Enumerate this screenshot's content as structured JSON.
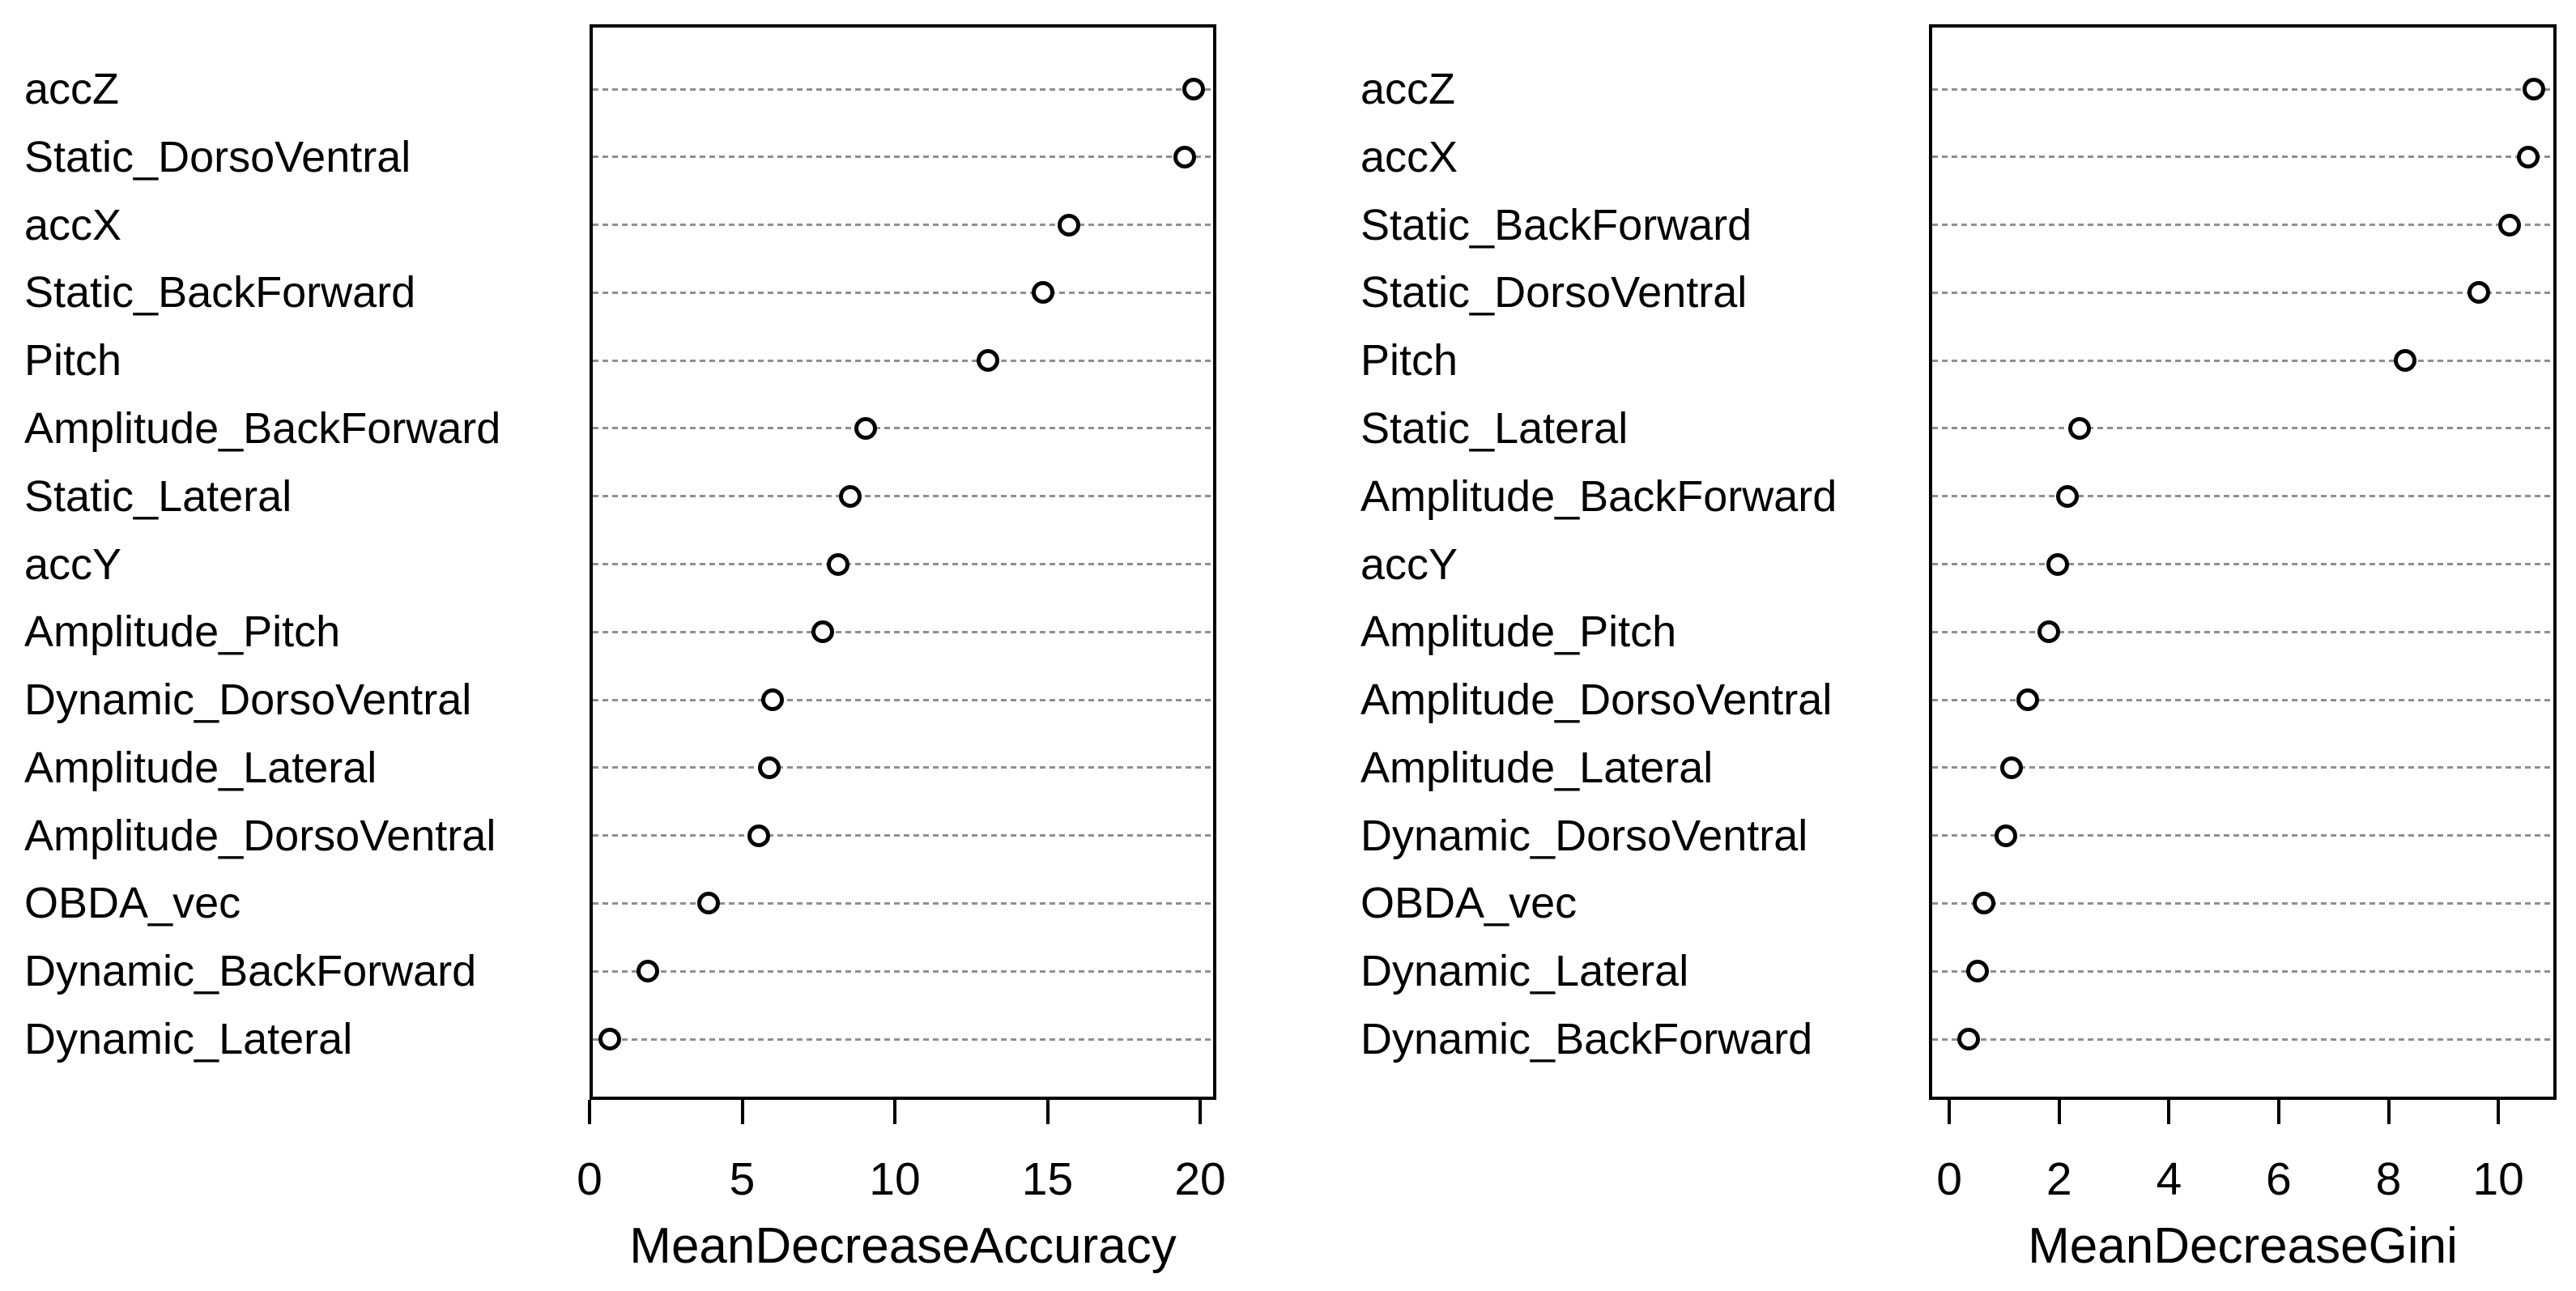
{
  "figure": {
    "kind": "random-forest variable importance dot chart",
    "background": "#ffffff"
  },
  "colors": {
    "text": "#000000",
    "box_border": "#000000",
    "point_stroke": "#000000",
    "point_fill": "#ffffff",
    "grid_dots": "#8f8f8f"
  },
  "chart_data": [
    {
      "type": "scatter",
      "panel": "left",
      "xlabel": "MeanDecreaseAccuracy",
      "marker": "open-circle",
      "grid": "horizontal dotted lines per category",
      "legend": "none",
      "x_ticks": [
        0,
        5,
        10,
        15,
        20
      ],
      "xlim": [
        0,
        20.53
      ],
      "categories": [
        "accZ",
        "Static_DorsoVentral",
        "accX",
        "Static_BackForward",
        "Pitch",
        "Amplitude_BackForward",
        "Static_Lateral",
        "accY",
        "Amplitude_Pitch",
        "Dynamic_DorsoVentral",
        "Amplitude_Lateral",
        "Amplitude_DorsoVentral",
        "OBDA_vec",
        "Dynamic_BackForward",
        "Dynamic_Lateral"
      ],
      "values": [
        19.8,
        19.5,
        15.7,
        14.85,
        13.05,
        9.05,
        8.55,
        8.15,
        7.65,
        6.0,
        5.9,
        5.55,
        3.9,
        1.9,
        0.65
      ]
    },
    {
      "type": "scatter",
      "panel": "right",
      "xlabel": "MeanDecreaseGini",
      "marker": "open-circle",
      "grid": "horizontal dotted lines per category",
      "legend": "none",
      "x_ticks": [
        0,
        2,
        4,
        6,
        8,
        10
      ],
      "xlim": [
        -0.37,
        11.06
      ],
      "categories": [
        "accZ",
        "accX",
        "Static_BackForward",
        "Static_DorsoVentral",
        "Pitch",
        "Static_Lateral",
        "Amplitude_BackForward",
        "accY",
        "Amplitude_Pitch",
        "Amplitude_DorsoVentral",
        "Amplitude_Lateral",
        "Dynamic_DorsoVentral",
        "OBDA_vec",
        "Dynamic_Lateral",
        "Dynamic_BackForward"
      ],
      "values": [
        10.65,
        10.55,
        10.2,
        9.65,
        8.3,
        2.37,
        2.15,
        1.98,
        1.81,
        1.43,
        1.13,
        1.03,
        0.64,
        0.52,
        0.36
      ]
    }
  ]
}
